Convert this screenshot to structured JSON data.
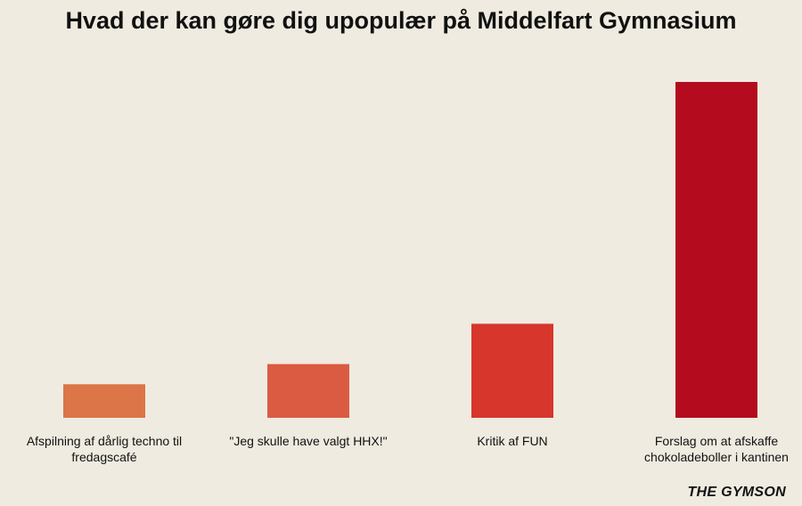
{
  "chart_data": {
    "type": "bar",
    "title": "Hvad der kan gøre dig upopulær på Middelfart Gymnasium",
    "categories": [
      "Afspilning af dårlig techno til fredagscafé",
      "\"Jeg skulle have valgt HHX!\"",
      "Kritik af FUN",
      "Forslag om at afskaffe chokoladeboller i kantinen"
    ],
    "values": [
      10,
      16,
      28,
      100
    ],
    "colors": [
      "#dc7548",
      "#db5b42",
      "#d6362b",
      "#b40c1e"
    ],
    "xlabel": "",
    "ylabel": "",
    "ylim": [
      0,
      100
    ],
    "grid": false,
    "legend": "none"
  },
  "source": "THE GYMSON"
}
